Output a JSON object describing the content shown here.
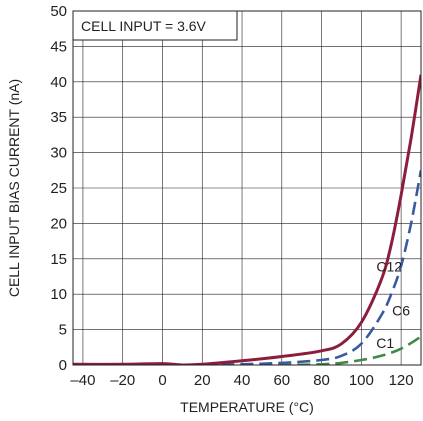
{
  "chart_data": {
    "type": "line",
    "title": "",
    "annotation": "CELL INPUT = 3.6V",
    "xlabel": "TEMPERATURE (°C)",
    "ylabel": "CELL INPUT BIAS CURRENT (nA)",
    "xlim": [
      -45,
      130
    ],
    "ylim": [
      0,
      50
    ],
    "xticks": [
      -40,
      -20,
      0,
      20,
      40,
      60,
      80,
      100,
      120
    ],
    "xtick_labels": [
      "–40",
      "–20",
      "0",
      "20",
      "40",
      "60",
      "80",
      "100",
      "120"
    ],
    "yticks": [
      0,
      5,
      10,
      15,
      20,
      25,
      30,
      35,
      40,
      45,
      50
    ],
    "ytick_labels": [
      "0",
      "5",
      "10",
      "15",
      "20",
      "25",
      "30",
      "35",
      "40",
      "45",
      "50"
    ],
    "grid": true,
    "series": [
      {
        "name": "C12",
        "color": "#8c1d3c",
        "style": "solid",
        "points": [
          [
            -45,
            0.1
          ],
          [
            -20,
            0.1
          ],
          [
            0,
            0.2
          ],
          [
            10,
            0
          ],
          [
            20,
            0.1
          ],
          [
            40,
            0.6
          ],
          [
            60,
            1.2
          ],
          [
            80,
            2
          ],
          [
            90,
            3
          ],
          [
            100,
            6
          ],
          [
            110,
            12
          ],
          [
            115,
            17
          ],
          [
            120,
            24
          ],
          [
            125,
            32
          ],
          [
            130,
            41
          ]
        ]
      },
      {
        "name": "C6",
        "color": "#3a5aa0",
        "style": "dashed",
        "points": [
          [
            20,
            0
          ],
          [
            40,
            0.1
          ],
          [
            60,
            0.3
          ],
          [
            80,
            0.7
          ],
          [
            90,
            1.3
          ],
          [
            100,
            3
          ],
          [
            110,
            7
          ],
          [
            115,
            10
          ],
          [
            120,
            14
          ],
          [
            125,
            20
          ],
          [
            130,
            27.5
          ]
        ]
      },
      {
        "name": "C1",
        "color": "#3f8a47",
        "style": "dashed",
        "points": [
          [
            20,
            0
          ],
          [
            60,
            0
          ],
          [
            80,
            0.1
          ],
          [
            90,
            0.3
          ],
          [
            100,
            0.7
          ],
          [
            110,
            1.3
          ],
          [
            120,
            2.3
          ],
          [
            130,
            4
          ]
        ]
      }
    ],
    "series_label_positions": {
      "C12": [
        114,
        13.2
      ],
      "C6": [
        120,
        7
      ],
      "C1": [
        112,
        2.4
      ]
    }
  }
}
